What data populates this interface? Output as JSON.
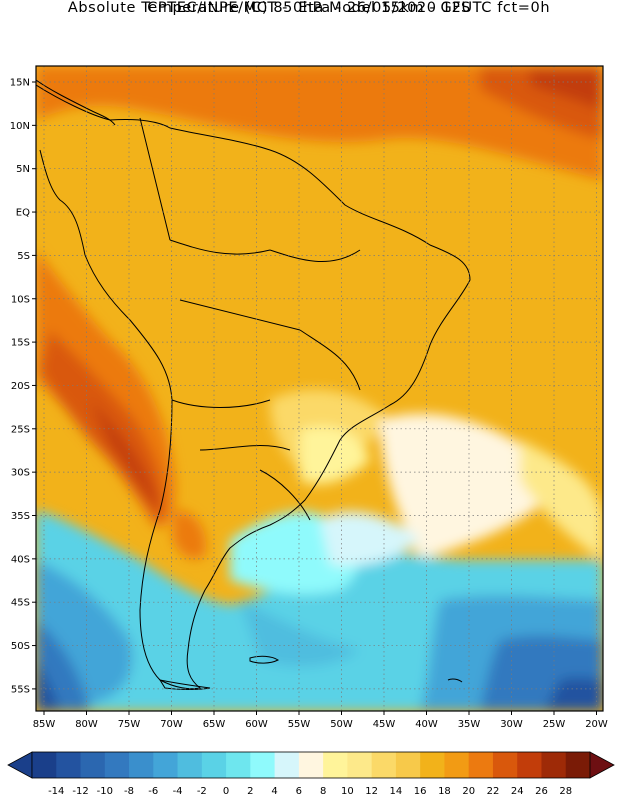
{
  "header": {
    "line1": "CPTEC/INPE/MCT -  Eta Model 15km - GFS",
    "line2": "Absolute Temperature (C) 850hPa - 26/05/2020 12UTC fct=0h"
  },
  "map": {
    "lat_labels": [
      "15N",
      "10N",
      "5N",
      "EQ",
      "5S",
      "10S",
      "15S",
      "20S",
      "25S",
      "30S",
      "35S",
      "40S",
      "45S",
      "50S",
      "55S"
    ],
    "lon_labels": [
      "85W",
      "80W",
      "75W",
      "70W",
      "65W",
      "60W",
      "55W",
      "50W",
      "45W",
      "40W",
      "35W",
      "30W",
      "25W",
      "20W"
    ]
  },
  "colorbar": {
    "values": [
      "-14",
      "-12",
      "-10",
      "-8",
      "-6",
      "-4",
      "-2",
      "0",
      "2",
      "4",
      "6",
      "8",
      "10",
      "12",
      "14",
      "16",
      "18",
      "20",
      "22",
      "24",
      "26",
      "28"
    ],
    "colors": [
      "#1a3f8a",
      "#2353a0",
      "#2b67b0",
      "#3379bf",
      "#3a8fcc",
      "#43a5d8",
      "#4fbddf",
      "#5ad2e6",
      "#6ee6ee",
      "#8ffafc",
      "#d6f6fb",
      "#fff6e0",
      "#fff49a",
      "#fde98a",
      "#fbd968",
      "#f7c94a",
      "#f2b21a",
      "#f29b14",
      "#ec7a10",
      "#d9580c",
      "#c23d0a",
      "#9e2a07",
      "#7a1b06"
    ]
  }
}
